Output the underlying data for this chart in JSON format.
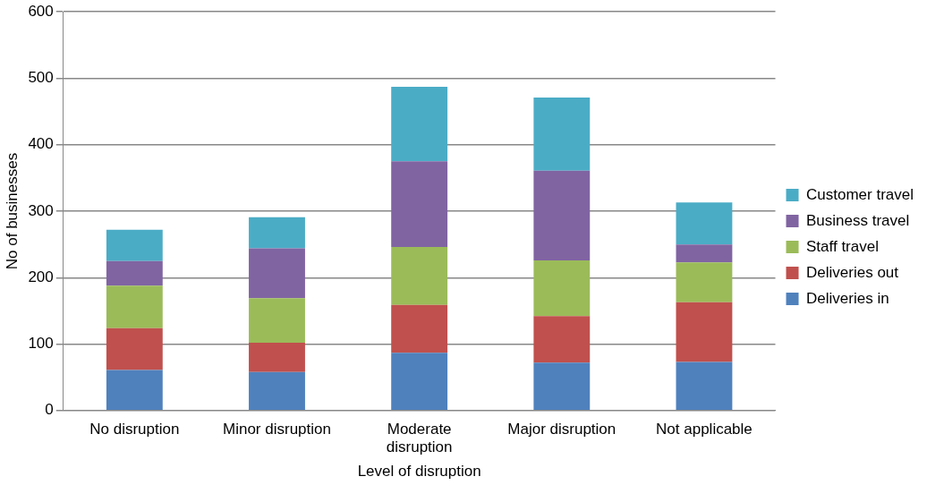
{
  "chart_data": {
    "type": "bar",
    "stacked": true,
    "xlabel": "Level of disruption",
    "ylabel": "No of businesses",
    "categories": [
      "No disruption",
      "Minor disruption",
      "Moderate disruption",
      "Major disruption",
      "Not applicable"
    ],
    "series": [
      {
        "name": "Deliveries in",
        "color": "#4f81bd",
        "values": [
          61,
          58,
          87,
          72,
          73
        ]
      },
      {
        "name": "Deliveries out",
        "color": "#c0504d",
        "values": [
          63,
          44,
          72,
          70,
          90
        ]
      },
      {
        "name": "Staff travel",
        "color": "#9bbb59",
        "values": [
          64,
          67,
          87,
          84,
          60
        ]
      },
      {
        "name": "Business travel",
        "color": "#8064a2",
        "values": [
          37,
          75,
          129,
          135,
          27
        ]
      },
      {
        "name": "Customer travel",
        "color": "#4bacc6",
        "values": [
          47,
          47,
          112,
          110,
          63
        ]
      }
    ],
    "ylim": [
      0,
      600
    ],
    "yticks": [
      0,
      100,
      200,
      300,
      400,
      500,
      600
    ],
    "grid": "y",
    "legend": "right"
  }
}
